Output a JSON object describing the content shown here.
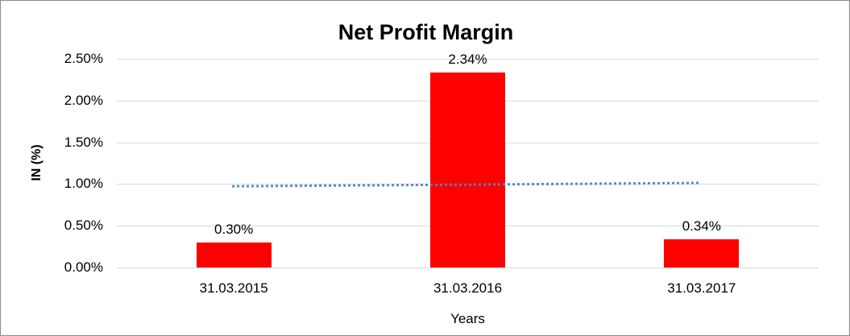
{
  "chart_data": {
    "type": "bar",
    "title": "Net Profit Margin",
    "xlabel": "Years",
    "ylabel": "IN (%)",
    "categories": [
      "31.03.2015",
      "31.03.2016",
      "31.03.2017"
    ],
    "values": [
      0.3,
      2.34,
      0.34
    ],
    "data_labels": [
      "0.30%",
      "2.34%",
      "0.34%"
    ],
    "yticks": [
      {
        "value": 0.0,
        "label": "0.00%"
      },
      {
        "value": 0.5,
        "label": "0.50%"
      },
      {
        "value": 1.0,
        "label": "1.00%"
      },
      {
        "value": 1.5,
        "label": "1.50%"
      },
      {
        "value": 2.0,
        "label": "2.00%"
      },
      {
        "value": 2.5,
        "label": "2.50%"
      }
    ],
    "ylim": [
      0,
      2.5
    ],
    "grid": "horizontal",
    "legend": "none",
    "colors": {
      "bar": "#ff0000",
      "trendline": "#4a86c8",
      "gridline": "#d9d9d9",
      "text": "#000000"
    },
    "trendline": {
      "type": "linear",
      "style": "dotted",
      "start_value": 0.973,
      "end_value": 1.013
    }
  }
}
